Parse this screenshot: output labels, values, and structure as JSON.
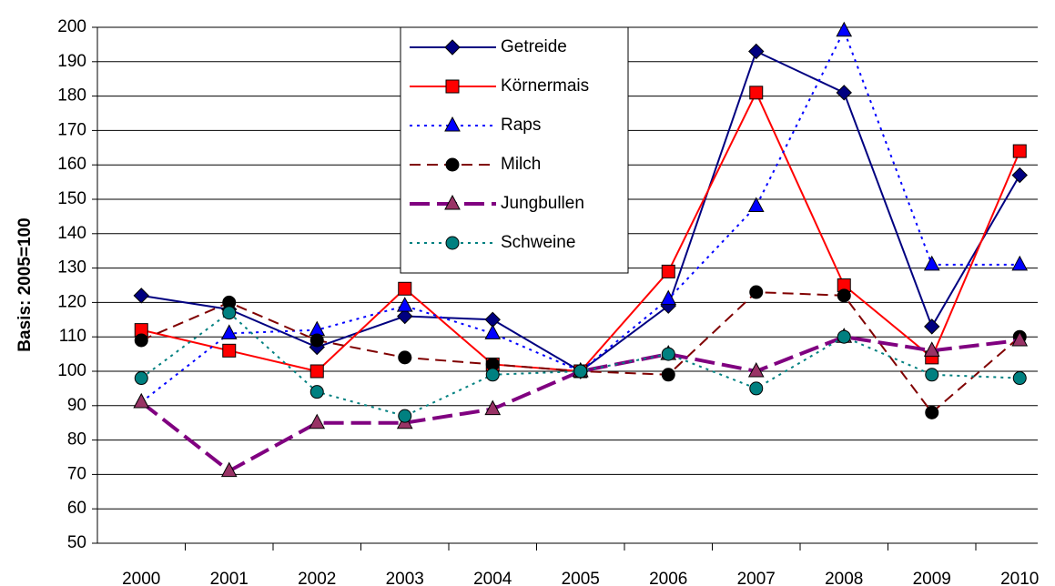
{
  "chart_data": {
    "type": "line",
    "ylabel": "Basis: 2005=100",
    "categories": [
      "2000",
      "2001",
      "2002",
      "2003",
      "2004",
      "2005",
      "2006",
      "2007",
      "2008",
      "2009",
      "2010"
    ],
    "ylim": [
      50,
      200
    ],
    "yticks": [
      50,
      60,
      70,
      80,
      90,
      100,
      110,
      120,
      130,
      140,
      150,
      160,
      170,
      180,
      190,
      200
    ],
    "grid": true,
    "legend": "top",
    "series": [
      {
        "name": "Getreide",
        "color": "#000080",
        "marker": "diamond",
        "marker_color": "#000080",
        "dash": "solid",
        "values": [
          122,
          118,
          107,
          116,
          115,
          100,
          119,
          193,
          181,
          113,
          157
        ]
      },
      {
        "name": "Körnermais",
        "color": "#ff0000",
        "marker": "square",
        "marker_color": "#ff0000",
        "dash": "solid",
        "values": [
          112,
          106,
          100,
          124,
          102,
          100,
          129,
          181,
          125,
          104,
          164
        ]
      },
      {
        "name": "Raps",
        "color": "#0000ff",
        "marker": "triangle",
        "marker_color": "#0000ff",
        "dash": "dot",
        "values": [
          91,
          111,
          112,
          119,
          111,
          100,
          121,
          148,
          199,
          131,
          131
        ]
      },
      {
        "name": "Milch",
        "color": "#800000",
        "marker": "circle",
        "marker_color": "#000000",
        "dash": "dash",
        "values": [
          109,
          120,
          109,
          104,
          102,
          100,
          99,
          123,
          122,
          88,
          110
        ]
      },
      {
        "name": "Jungbullen",
        "color": "#800080",
        "marker": "triangle",
        "marker_color": "#993366",
        "dash": "longdash",
        "values": [
          91,
          71,
          85,
          85,
          89,
          100,
          105,
          100,
          110,
          106,
          109
        ]
      },
      {
        "name": "Schweine",
        "color": "#008080",
        "marker": "circle",
        "marker_color": "#008080",
        "dash": "dot",
        "values": [
          98,
          117,
          94,
          87,
          99,
          100,
          105,
          95,
          110,
          99,
          98
        ]
      }
    ]
  }
}
